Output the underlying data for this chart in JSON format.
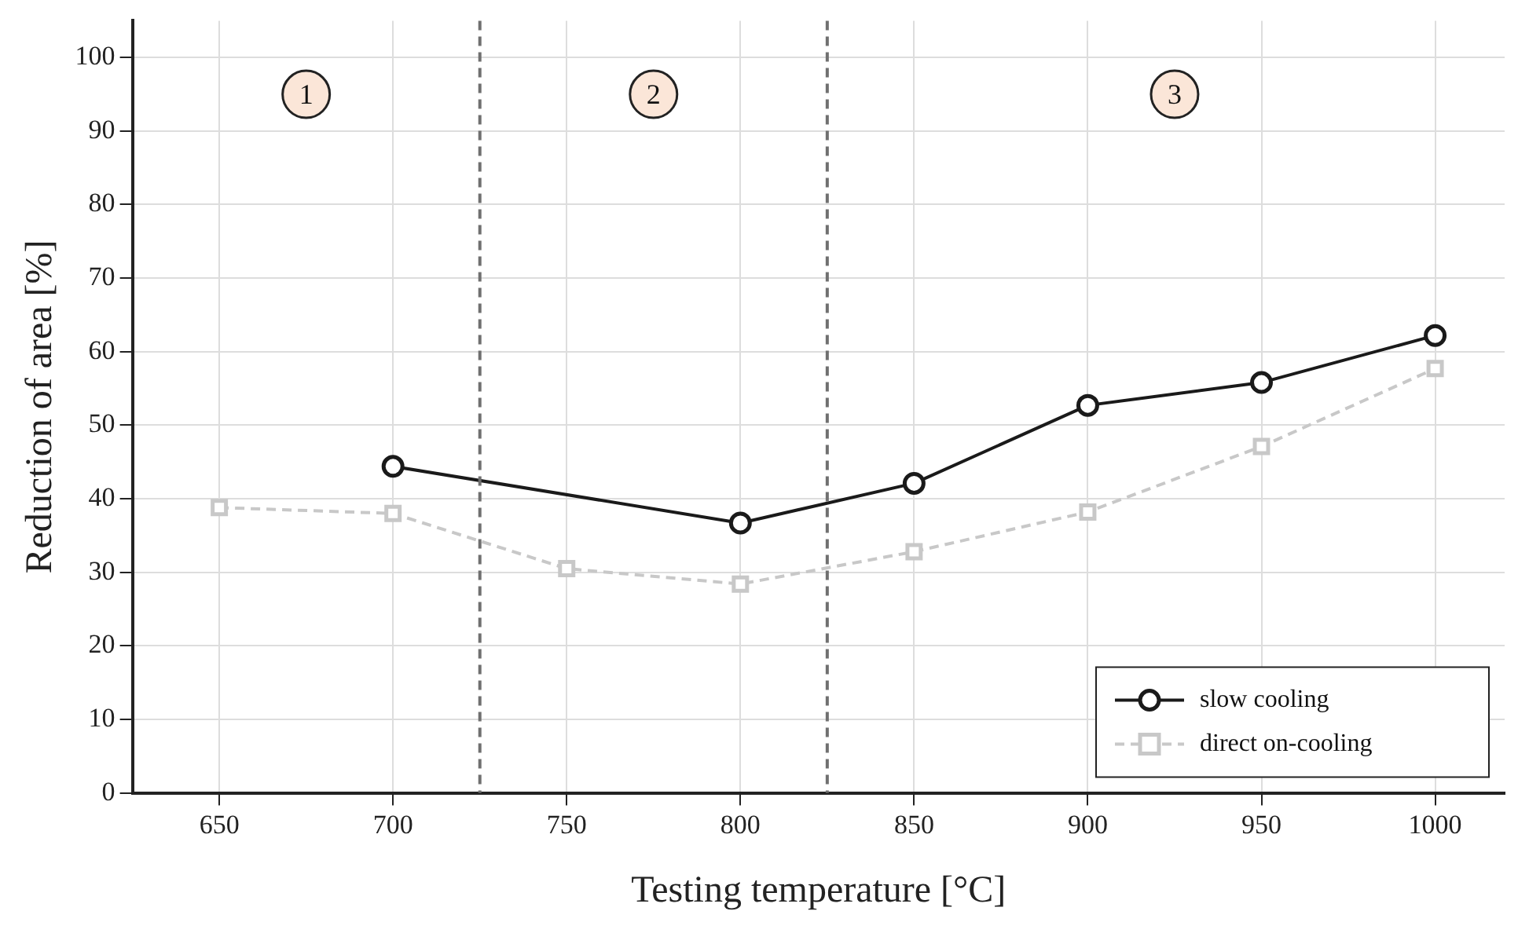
{
  "chart_data": {
    "type": "line",
    "xlabel": "Testing temperature [°C]",
    "ylabel": "Reduction of area [%]",
    "xlim": [
      625,
      1020
    ],
    "xticks": [
      650,
      700,
      750,
      800,
      850,
      900,
      950,
      1000
    ],
    "ylim": [
      0,
      105
    ],
    "yticks": [
      0,
      10,
      20,
      30,
      40,
      50,
      60,
      70,
      80,
      90,
      100
    ],
    "grid": true,
    "legend": "bottom right",
    "series": [
      {
        "name": "slow cooling",
        "color": "#1a1a1a",
        "marker": "circle",
        "line_style": "solid",
        "x": [
          700,
          800,
          850,
          900,
          950,
          1000
        ],
        "values": [
          44.4,
          36.7,
          42.1,
          52.7,
          55.8,
          62.2
        ]
      },
      {
        "name": "direct on-cooling",
        "color": "#c8c8c8",
        "marker": "square",
        "line_style": "dashed",
        "x": [
          650,
          700,
          750,
          800,
          850,
          900,
          950,
          1000
        ],
        "values": [
          38.8,
          38.0,
          30.5,
          28.4,
          32.8,
          38.2,
          47.1,
          57.7
        ]
      }
    ],
    "ref_lines": [
      {
        "axis": "x",
        "value": 725,
        "color": "#707070",
        "line_style": "dashed"
      },
      {
        "axis": "x",
        "value": 825,
        "color": "#707070",
        "line_style": "dashed"
      }
    ],
    "annotations": [
      {
        "text": "1",
        "x": 675,
        "y": 95
      },
      {
        "text": "2",
        "x": 775,
        "y": 95
      },
      {
        "text": "3",
        "x": 925,
        "y": 95
      }
    ]
  }
}
